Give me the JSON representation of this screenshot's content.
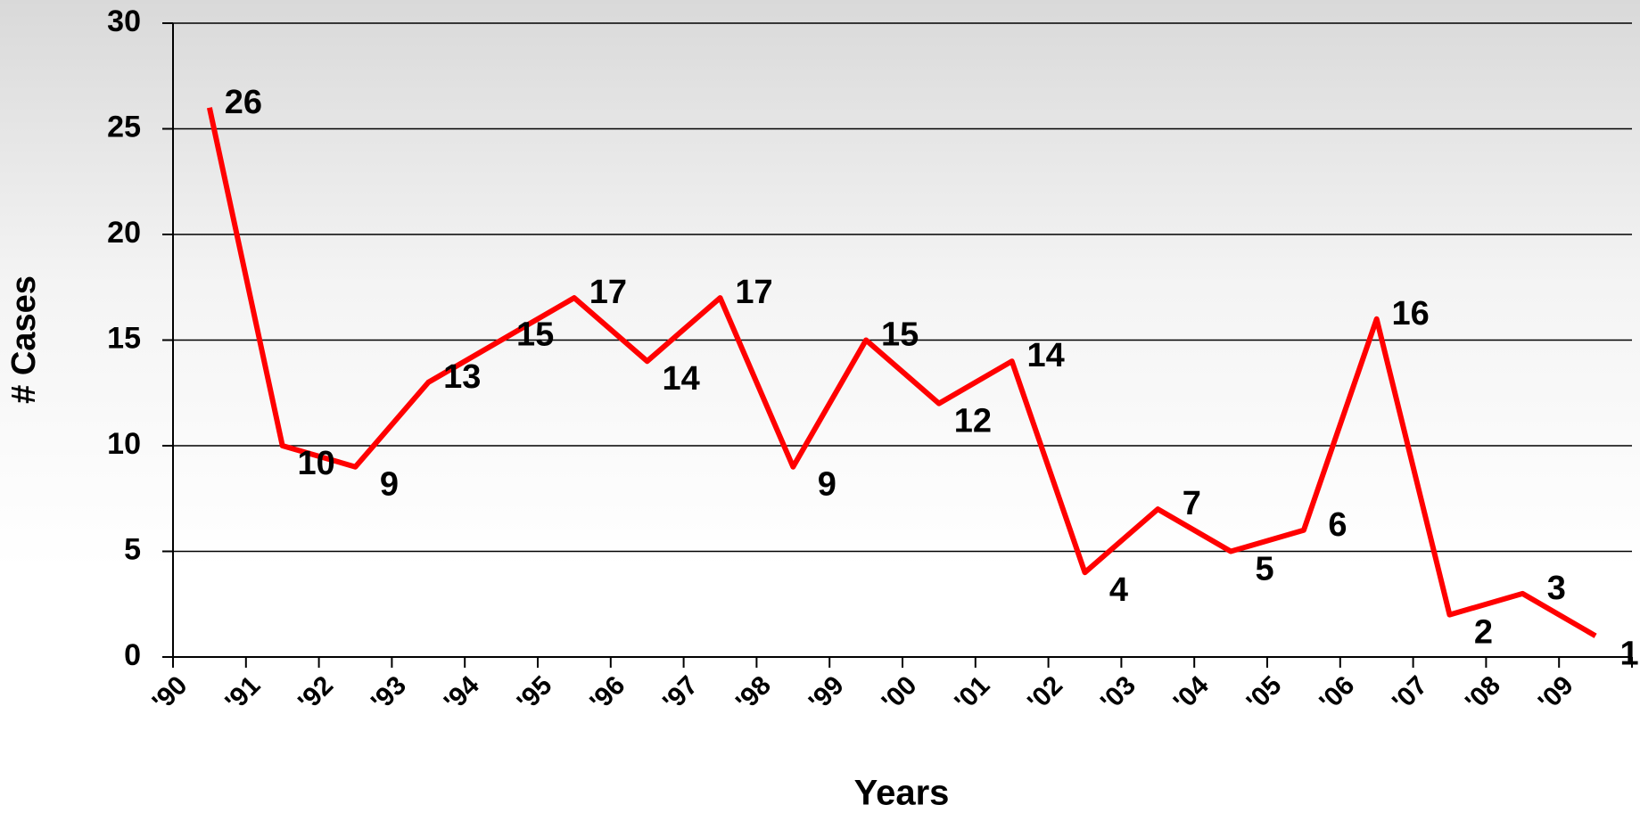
{
  "chart_data": {
    "type": "line",
    "x_label": "Years",
    "y_label": "# Cases",
    "categories": [
      "'90",
      "'91",
      "'92",
      "'93",
      "'94",
      "'95",
      "'96",
      "'97",
      "'98",
      "'99",
      "'00",
      "'01",
      "'02",
      "'03",
      "'04",
      "'05",
      "'06",
      "'07",
      "'08",
      "'09"
    ],
    "values": [
      26,
      10,
      9,
      13,
      15,
      17,
      14,
      17,
      9,
      15,
      12,
      14,
      4,
      7,
      5,
      6,
      16,
      2,
      3,
      1
    ],
    "color": "#ff0000",
    "ylim": [
      0,
      30
    ],
    "yticks": [
      0,
      5,
      10,
      15,
      20,
      25,
      30
    ],
    "grid": true
  }
}
